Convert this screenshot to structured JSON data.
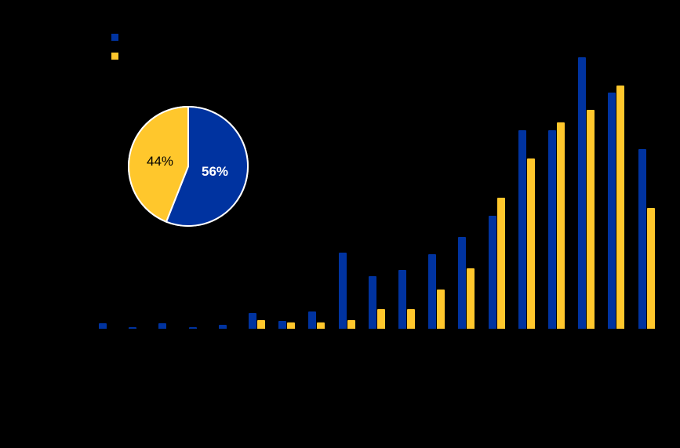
{
  "chart_data": [
    {
      "type": "bar",
      "title": "",
      "xlabel": "",
      "ylabel": "",
      "categories": [
        "",
        "",
        "",
        "",
        "",
        "",
        "",
        "",
        "",
        "",
        "",
        "",
        "",
        "",
        "",
        "",
        "",
        "",
        ""
      ],
      "series": [
        {
          "name": "",
          "color": "#0033A0",
          "values": [
            7,
            2,
            7,
            2,
            5,
            20,
            10,
            22,
            97,
            67,
            75,
            95,
            117,
            144,
            253,
            253,
            346,
            301,
            229
          ]
        },
        {
          "name": "",
          "color": "#FFC72C",
          "values": [
            0,
            0,
            0,
            0,
            0,
            11,
            8,
            8,
            11,
            25,
            25,
            50,
            77,
            167,
            217,
            263,
            279,
            310,
            154
          ]
        }
      ],
      "ylim": [
        0,
        379
      ],
      "grid": false,
      "legend_position": "top-left",
      "units_note": "values are relative bar heights in pixels; axis labels not visible"
    },
    {
      "type": "pie",
      "title": "",
      "slices": [
        {
          "label": "56%",
          "value": 56,
          "color": "#0033A0"
        },
        {
          "label": "44%",
          "value": 44,
          "color": "#FFC72C"
        }
      ]
    }
  ],
  "legend": [
    {
      "color": "#0033A0",
      "label": ""
    },
    {
      "color": "#FFC72C",
      "label": ""
    }
  ],
  "pie_labels": {
    "blue": "56%",
    "yellow": "44%"
  }
}
